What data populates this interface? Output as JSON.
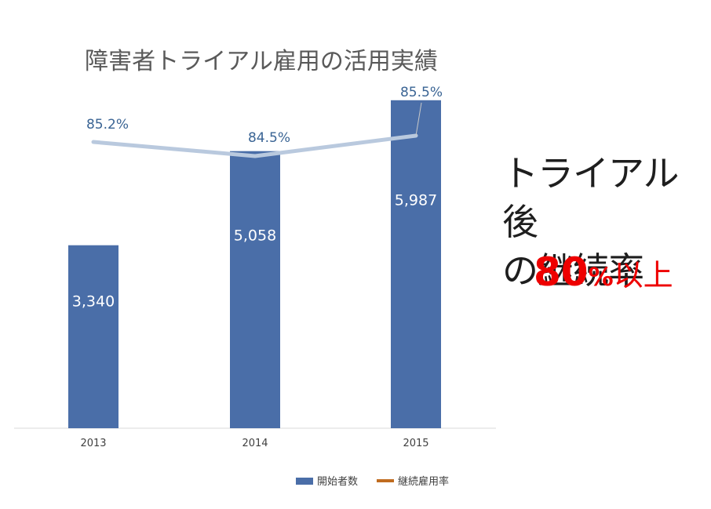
{
  "chart_data": {
    "type": "bar+line",
    "title": "障害者トライアル雇用の活用実績",
    "categories": [
      "2013",
      "2014",
      "2015"
    ],
    "series": [
      {
        "name": "開始者数",
        "type": "bar",
        "values": [
          3340,
          5058,
          5987
        ],
        "labels": [
          "3,340",
          "5,058",
          "5,987"
        ],
        "color": "#4a6ea8"
      },
      {
        "name": "継続雇用率",
        "type": "line",
        "values": [
          85.2,
          84.5,
          85.5
        ],
        "labels": [
          "85.2%",
          "84.5%",
          "85.5%"
        ],
        "color": "#b9c9de"
      }
    ],
    "legend_position": "bottom",
    "legend": [
      {
        "label": "開始者数",
        "color": "#4a6ea8"
      },
      {
        "label": "継続雇用率",
        "color": "#c06c20"
      }
    ],
    "grid": false
  },
  "sidebar": {
    "line1": "トライアル後",
    "line2": "の継続率",
    "stat_number": "80",
    "stat_percent": "%",
    "stat_suffix": "以上"
  }
}
